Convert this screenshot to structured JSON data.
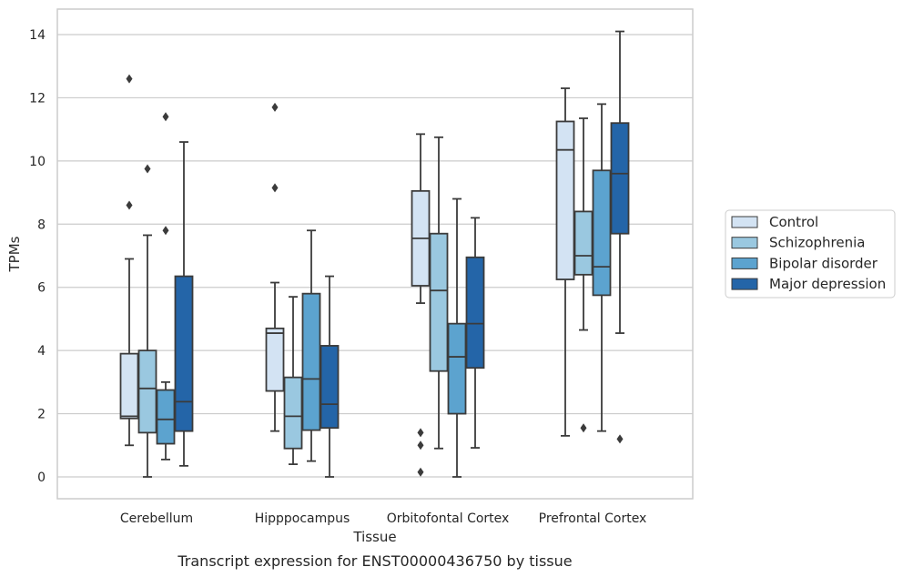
{
  "chart_data": {
    "type": "box",
    "title": "",
    "caption": "Transcript expression for ENST00000436750 by tissue",
    "xlabel": "Tissue",
    "ylabel": "TPMs",
    "ylim": [
      -0.7,
      14.8
    ],
    "yticks": [
      0,
      2,
      4,
      6,
      8,
      10,
      12,
      14
    ],
    "grid": "horizontal",
    "legend_position": "right",
    "categories": [
      "Cerebellum",
      "Hipppocampus",
      "Orbitofontal Cortex",
      "Prefrontal Cortex"
    ],
    "series": [
      {
        "name": "Control",
        "color": "#d3e3f3",
        "boxes": [
          {
            "whislo": 1.0,
            "q1": 1.85,
            "med": 1.92,
            "q3": 3.9,
            "whishi": 6.9,
            "fliers": [
              8.6,
              12.6
            ]
          },
          {
            "whislo": 1.45,
            "q1": 2.72,
            "med": 4.55,
            "q3": 4.7,
            "whishi": 6.15,
            "fliers": [
              9.15,
              11.7
            ]
          },
          {
            "whislo": 5.5,
            "q1": 6.05,
            "med": 7.55,
            "q3": 9.05,
            "whishi": 10.85,
            "fliers": [
              0.15,
              1.0,
              1.4
            ]
          },
          {
            "whislo": 1.3,
            "q1": 6.25,
            "med": 10.35,
            "q3": 11.25,
            "whishi": 12.3,
            "fliers": []
          }
        ]
      },
      {
        "name": "Schizophrenia",
        "color": "#9ac8e0",
        "boxes": [
          {
            "whislo": 0.0,
            "q1": 1.4,
            "med": 2.8,
            "q3": 4.0,
            "whishi": 7.65,
            "fliers": [
              9.75
            ]
          },
          {
            "whislo": 0.4,
            "q1": 0.9,
            "med": 1.92,
            "q3": 3.15,
            "whishi": 5.7,
            "fliers": []
          },
          {
            "whislo": 0.9,
            "q1": 3.35,
            "med": 5.9,
            "q3": 7.7,
            "whishi": 10.75,
            "fliers": []
          },
          {
            "whislo": 4.65,
            "q1": 6.4,
            "med": 7.0,
            "q3": 8.4,
            "whishi": 11.35,
            "fliers": [
              1.55
            ]
          }
        ]
      },
      {
        "name": "Bipolar disorder",
        "color": "#5ca3cf",
        "boxes": [
          {
            "whislo": 0.55,
            "q1": 1.05,
            "med": 1.82,
            "q3": 2.75,
            "whishi": 3.0,
            "fliers": [
              7.8,
              11.4
            ]
          },
          {
            "whislo": 0.5,
            "q1": 1.48,
            "med": 3.1,
            "q3": 5.8,
            "whishi": 7.8,
            "fliers": []
          },
          {
            "whislo": 0.0,
            "q1": 2.0,
            "med": 3.8,
            "q3": 4.85,
            "whishi": 8.8,
            "fliers": []
          },
          {
            "whislo": 1.45,
            "q1": 5.75,
            "med": 6.65,
            "q3": 9.7,
            "whishi": 11.8,
            "fliers": []
          }
        ]
      },
      {
        "name": "Major depression",
        "color": "#2465a8",
        "boxes": [
          {
            "whislo": 0.35,
            "q1": 1.45,
            "med": 2.38,
            "q3": 6.35,
            "whishi": 10.6,
            "fliers": []
          },
          {
            "whislo": 0.0,
            "q1": 1.55,
            "med": 2.3,
            "q3": 4.15,
            "whishi": 6.35,
            "fliers": []
          },
          {
            "whislo": 0.92,
            "q1": 3.45,
            "med": 4.85,
            "q3": 6.95,
            "whishi": 8.2,
            "fliers": []
          },
          {
            "whislo": 4.55,
            "q1": 7.7,
            "med": 9.6,
            "q3": 11.2,
            "whishi": 14.1,
            "fliers": [
              1.2
            ]
          }
        ]
      }
    ]
  }
}
